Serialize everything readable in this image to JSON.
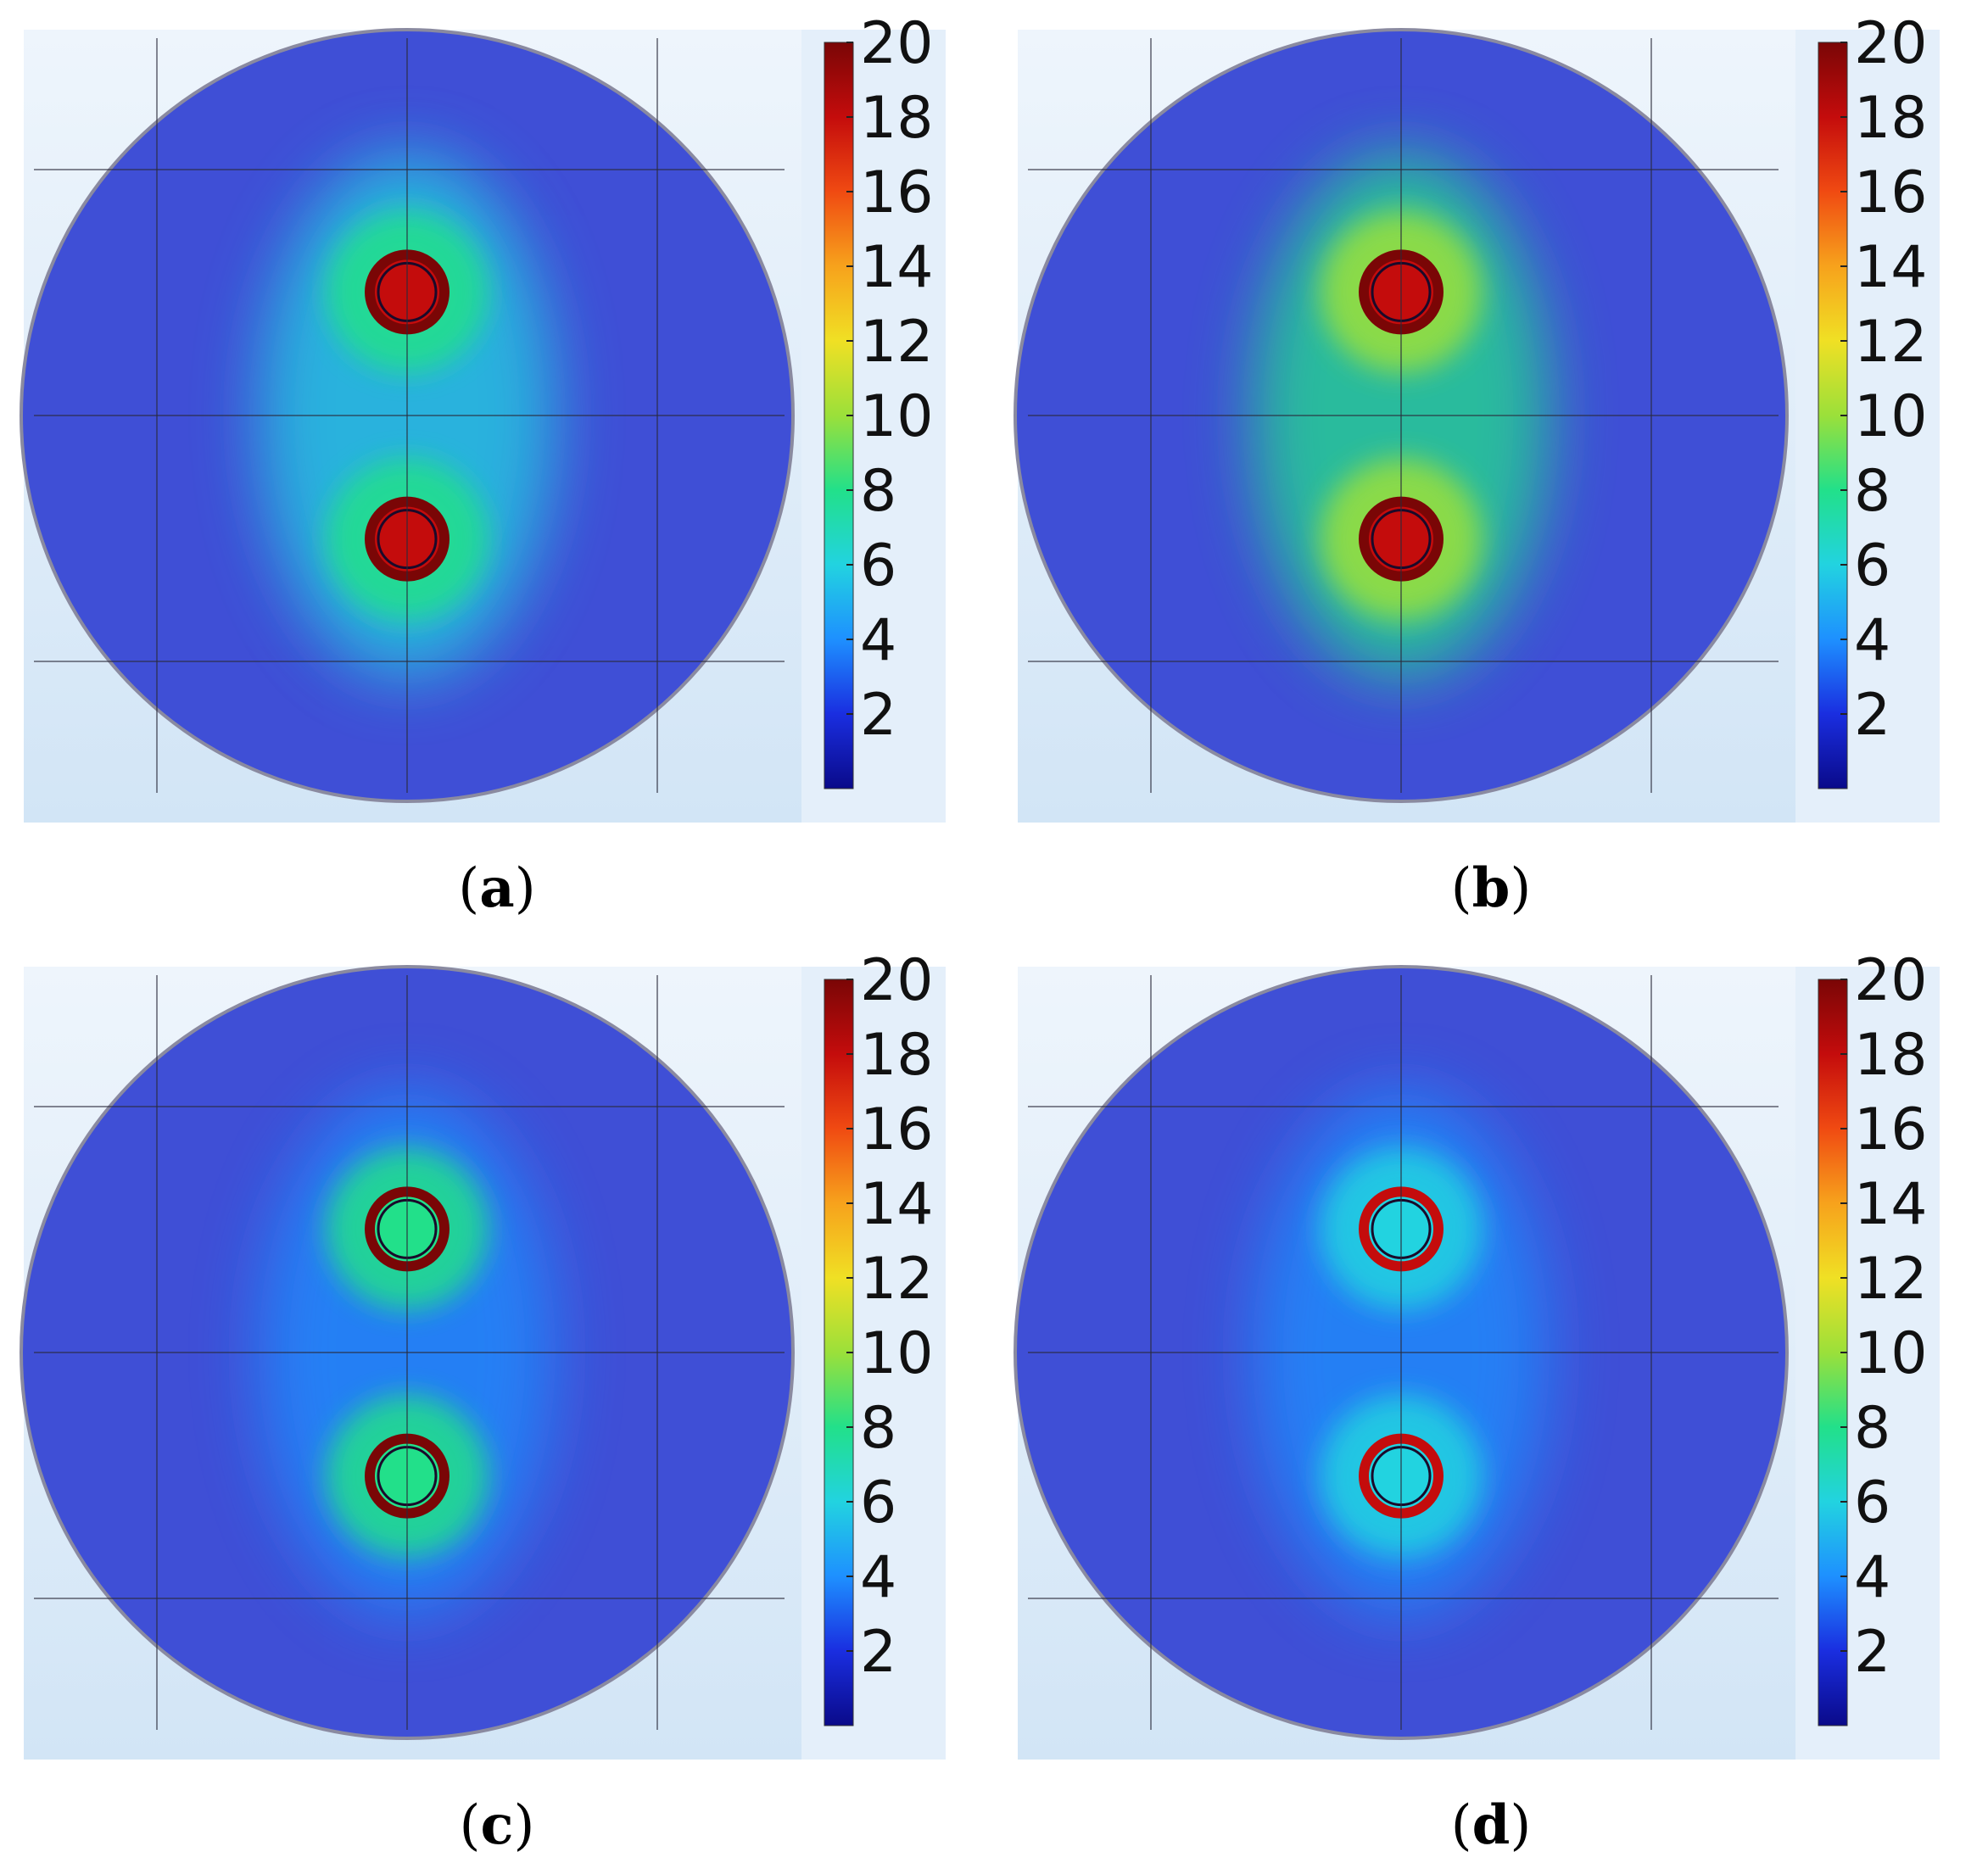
{
  "colors": {
    "background_panel": "#dcebf8",
    "field_base": "#3f4fd6",
    "colormap": [
      "#0a0a8a",
      "#1a2ee0",
      "#1e90ff",
      "#22d3e0",
      "#22e08a",
      "#9be03a",
      "#f0e024",
      "#f7a21c",
      "#f04a12",
      "#c40c0c",
      "#7a0606"
    ]
  },
  "chart_data": [
    {
      "type": "heatmap",
      "panel_label": "a",
      "colorbar": {
        "range": [
          0,
          20
        ],
        "ticks": [
          2,
          4,
          6,
          8,
          10,
          12,
          14,
          16,
          18,
          20
        ]
      },
      "sources": [
        {
          "x": 0,
          "y": 0.32,
          "peak": 17,
          "ring_value": 20,
          "halo_value": 8
        },
        {
          "x": 0,
          "y": -0.32,
          "peak": 17,
          "ring_value": 20,
          "halo_value": 8
        }
      ],
      "bridge_value": 6
    },
    {
      "type": "heatmap",
      "panel_label": "b",
      "colorbar": {
        "range": [
          0,
          20
        ],
        "ticks": [
          2,
          4,
          6,
          8,
          10,
          12,
          14,
          16,
          18,
          20
        ]
      },
      "sources": [
        {
          "x": 0,
          "y": 0.32,
          "peak": 18,
          "ring_value": 20,
          "halo_value": 9
        },
        {
          "x": 0,
          "y": -0.32,
          "peak": 18,
          "ring_value": 20,
          "halo_value": 9
        }
      ],
      "bridge_value": 7
    },
    {
      "type": "heatmap",
      "panel_label": "c",
      "colorbar": {
        "range": [
          0,
          20
        ],
        "ticks": [
          2,
          4,
          6,
          8,
          10,
          12,
          14,
          16,
          18,
          20
        ]
      },
      "sources": [
        {
          "x": 0,
          "y": 0.32,
          "peak": 7,
          "ring_value": 20,
          "halo_value": 7
        },
        {
          "x": 0,
          "y": -0.32,
          "peak": 7,
          "ring_value": 20,
          "halo_value": 7
        }
      ],
      "bridge_value": 4
    },
    {
      "type": "heatmap",
      "panel_label": "d",
      "colorbar": {
        "range": [
          0,
          20
        ],
        "ticks": [
          2,
          4,
          6,
          8,
          10,
          12,
          14,
          16,
          18,
          20
        ]
      },
      "sources": [
        {
          "x": 0,
          "y": 0.32,
          "peak": 6,
          "ring_value": 18,
          "halo_value": 6
        },
        {
          "x": 0,
          "y": -0.32,
          "peak": 6,
          "ring_value": 18,
          "halo_value": 6
        }
      ],
      "bridge_value": 4
    }
  ]
}
